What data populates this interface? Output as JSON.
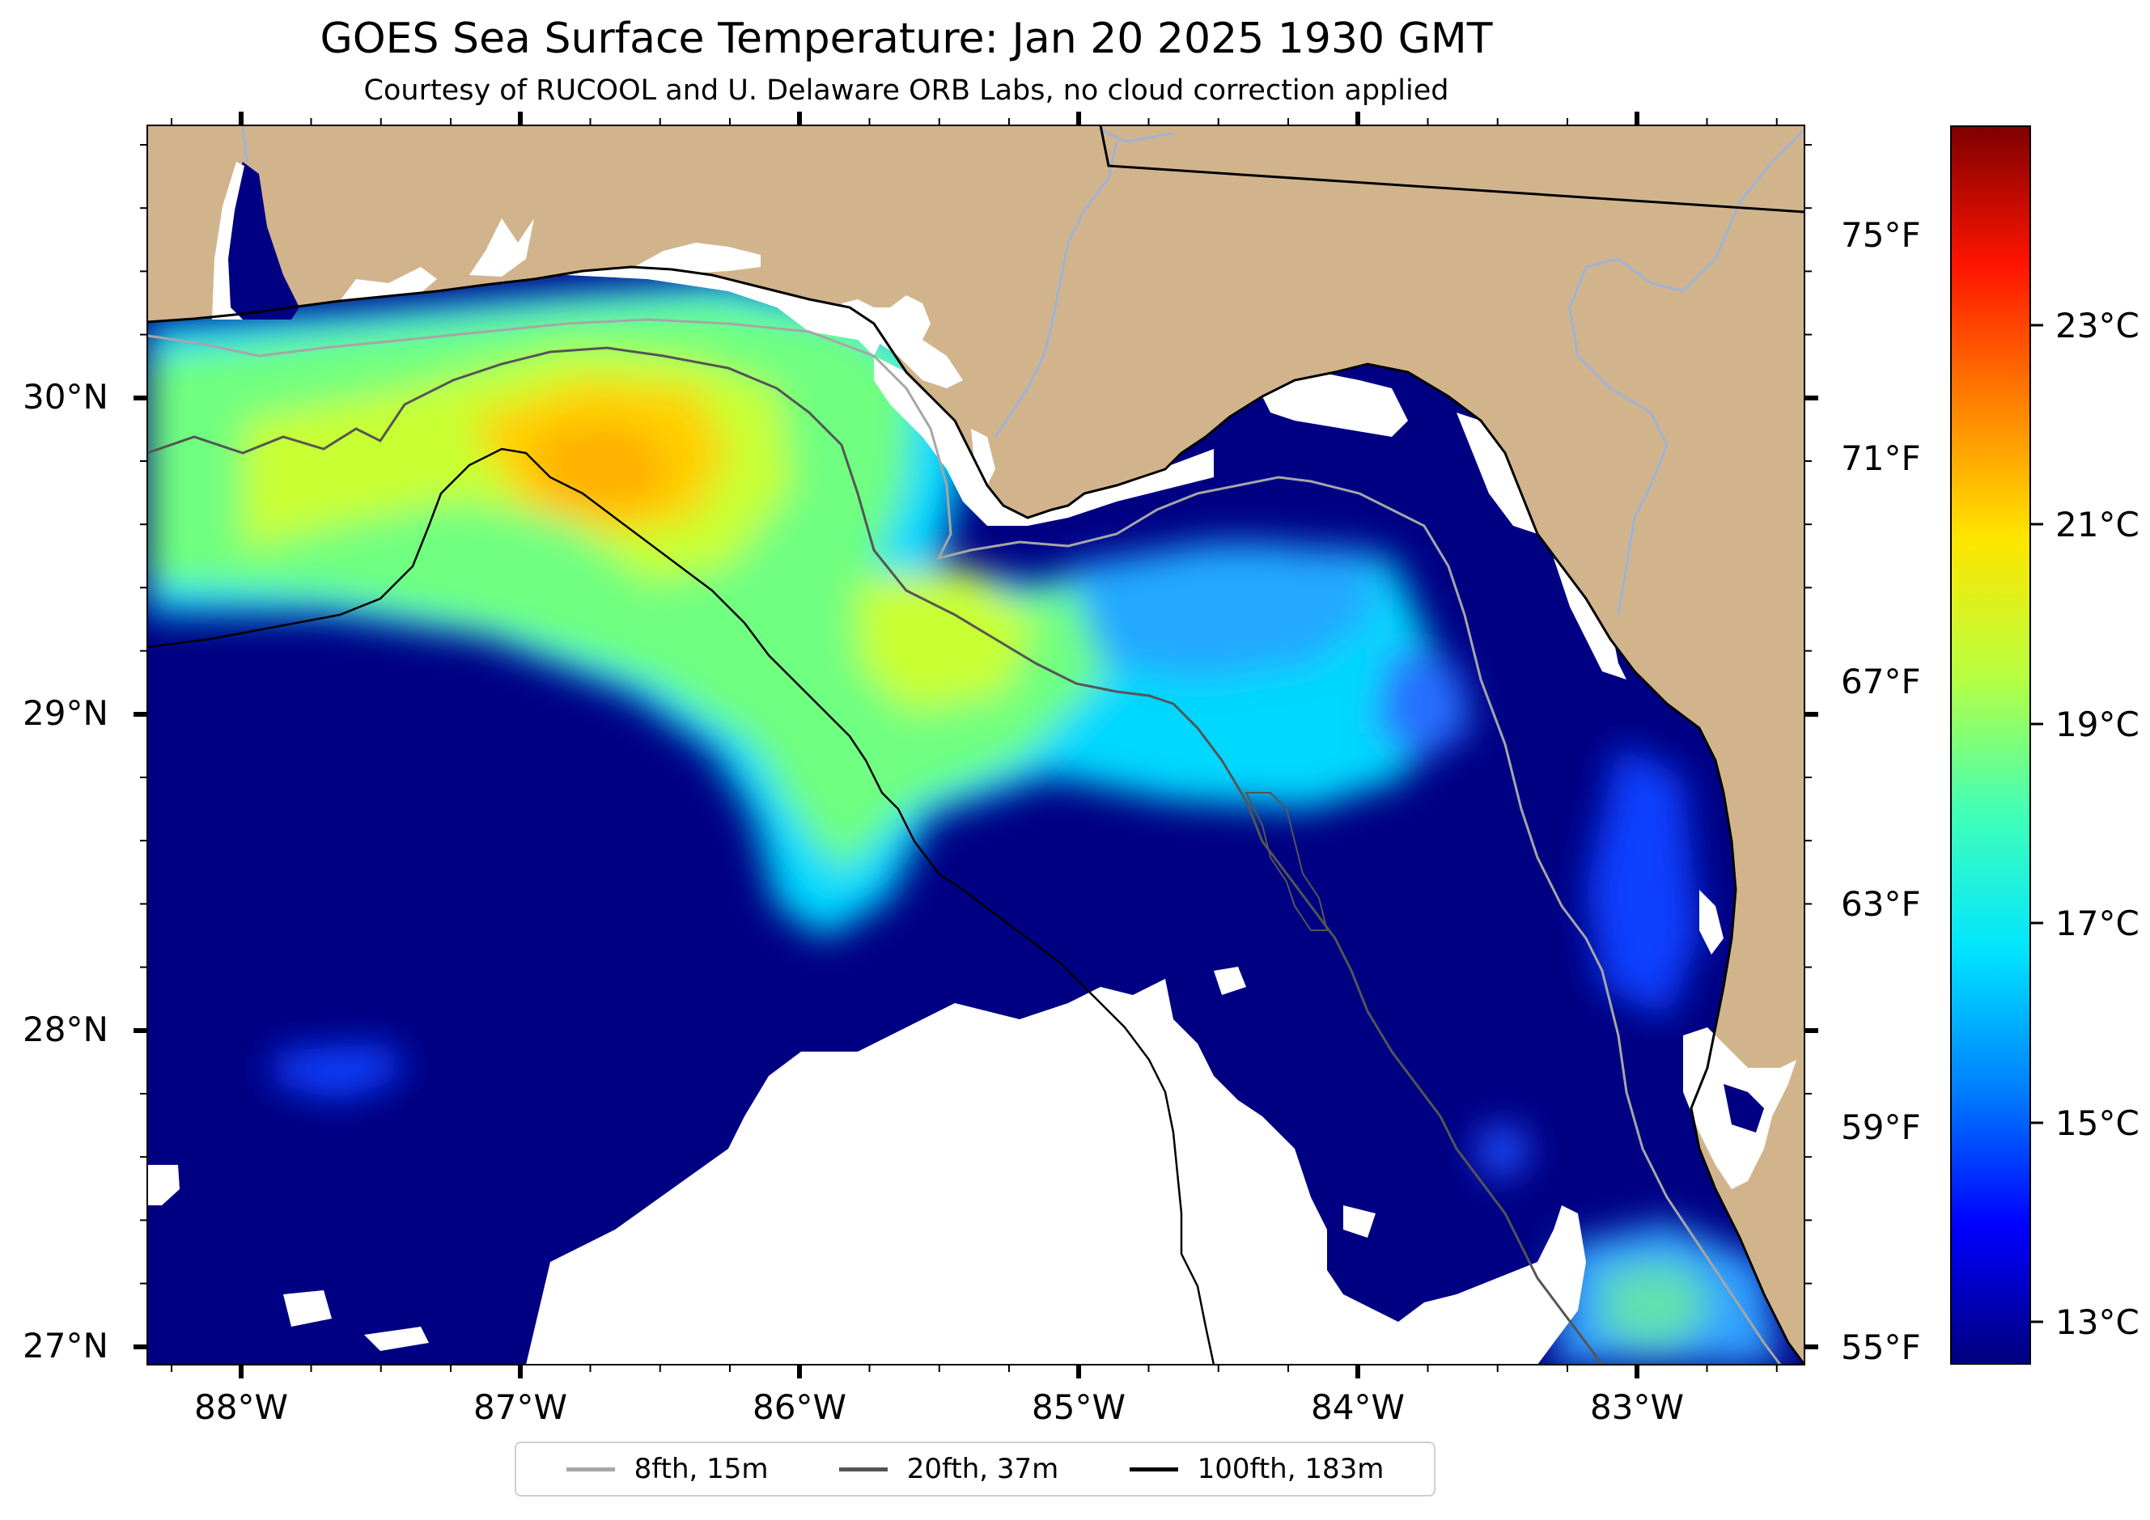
{
  "title": "GOES Sea Surface Temperature: Jan 20 2025 1930 GMT",
  "subtitle": "Courtesy of RUCOOL and U. Delaware ORB Labs, no cloud correction applied",
  "lat_labels": [
    "30°N",
    "29°N",
    "28°N",
    "27°N"
  ],
  "lon_labels": [
    "88°W",
    "87°W",
    "86°W",
    "85°W",
    "84°W",
    "83°W"
  ],
  "colorbar": {
    "fahrenheit_labels": [
      "75°F",
      "71°F",
      "67°F",
      "63°F",
      "59°F",
      "55°F"
    ],
    "celsius_labels": [
      "23°C",
      "21°C",
      "19°C",
      "17°C",
      "15°C",
      "13°C"
    ],
    "colors": [
      "#00007f",
      "#0000ff",
      "#0080ff",
      "#00e4ff",
      "#40ffb8",
      "#b8ff40",
      "#ffe600",
      "#ff8000",
      "#ff1400",
      "#7f0000"
    ]
  },
  "legend": [
    {
      "label": "8fth, 15m",
      "color": "#a6a6a6"
    },
    {
      "label": "20fth, 37m",
      "color": "#555555"
    },
    {
      "label": "100fth, 183m",
      "color": "#000000"
    }
  ],
  "colors": {
    "land": "#d2b48c",
    "cold_water": "#000083",
    "no_data": "#ffffff",
    "rivers": "#8fa8d0"
  }
}
